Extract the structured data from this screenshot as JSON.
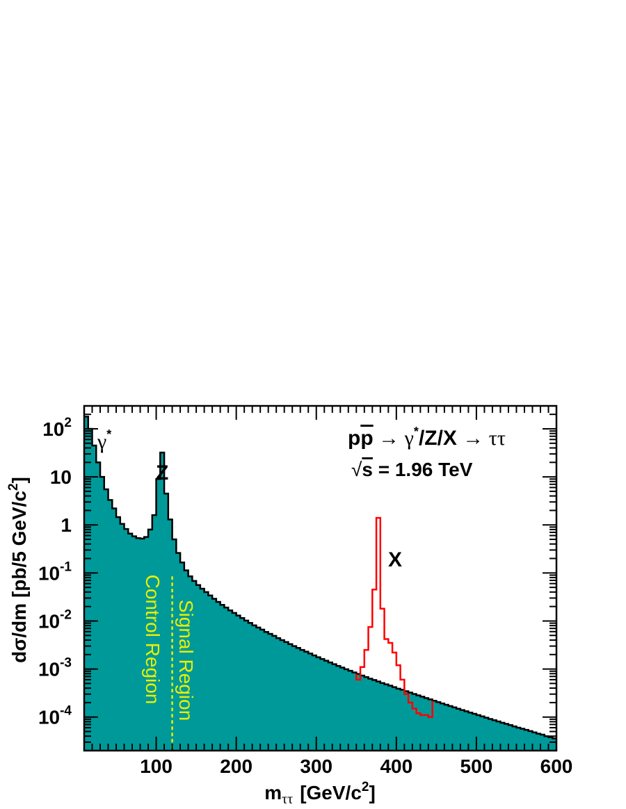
{
  "chart_data": {
    "type": "area",
    "xlabel_main": "m",
    "xlabel_sub": "ττ",
    "xlabel_unit": "[GeV/c",
    "xlabel_unit_sup": "2",
    "xlabel_unit_end": "]",
    "ylabel_main": "dσ/dm  [pb/5 GeV/c",
    "ylabel_sup": "2",
    "ylabel_end": "]",
    "x_range": [
      10,
      600
    ],
    "y_range": [
      2e-05,
      300
    ],
    "y_scale": "log",
    "x_tick_labels": [
      "100",
      "200",
      "300",
      "400",
      "500",
      "600"
    ],
    "y_tick_labels": [
      {
        "base": "10",
        "exp": "2"
      },
      {
        "base": "10",
        "exp": ""
      },
      {
        "base": "1",
        "exp": ""
      },
      {
        "base": "10",
        "exp": "-1"
      },
      {
        "base": "10",
        "exp": "-2"
      },
      {
        "base": "10",
        "exp": "-3"
      },
      {
        "base": "10",
        "exp": "-4"
      }
    ],
    "process_label": {
      "p": "p",
      "pbar": "p",
      "arrow1": " → ",
      "gamma": "γ",
      "star": "*",
      "mid": "/Z/X ",
      "arrow2": "→ ",
      "final": "ττ"
    },
    "energy_label": {
      "sqrt": "√",
      "s": "s",
      "rest": " = 1.96 TeV"
    },
    "peak_labels": {
      "gamma": {
        "text": "γ",
        "sup": "*"
      },
      "z": "Z",
      "x": "X"
    },
    "region_labels": {
      "control": "Control  Region",
      "signal": "Signal  Region"
    },
    "region_boundary_x": 120,
    "bin_width": 5,
    "colors": {
      "fill": "#009999",
      "outline": "#000000",
      "signal": "#ff0000",
      "region": "#e8f000"
    },
    "series": [
      {
        "x_start": 10,
        "values": [
          180,
          100,
          45,
          20,
          10,
          5.5,
          3.3,
          2.2,
          1.45,
          1.05,
          0.82,
          0.66,
          0.58,
          0.53,
          0.52,
          0.56,
          0.8,
          1.6,
          9,
          32,
          4.5,
          1.3,
          0.5,
          0.26,
          0.165,
          0.113,
          0.085,
          0.068,
          0.056,
          0.047,
          0.04,
          0.034,
          0.029,
          0.025,
          0.0217,
          0.019,
          0.0166,
          0.0147,
          0.013,
          0.0115,
          0.0102,
          0.0091,
          0.0081,
          0.0073,
          0.0066,
          0.0059,
          0.0054,
          0.0049,
          0.0044,
          0.004,
          0.00365,
          0.0033,
          0.003,
          0.00275,
          0.0025,
          0.0023,
          0.0021,
          0.00192,
          0.00176,
          0.00162,
          0.00149,
          0.00137,
          0.00126,
          0.00116,
          0.00107,
          0.00099,
          0.00092,
          0.00085,
          0.00079,
          0.00073,
          0.00068,
          0.00063,
          0.00059,
          0.00055,
          0.00051,
          0.00048,
          0.00045,
          0.00042,
          0.00039,
          0.00037,
          0.000345,
          0.000323,
          0.000302,
          0.000283,
          0.000265,
          0.000248,
          0.000233,
          0.000218,
          0.000205,
          0.000192,
          0.00018,
          0.000169,
          0.000159,
          0.000149,
          0.00014,
          0.000132,
          0.000124,
          0.000117,
          0.00011,
          0.000103,
          9.7e-05,
          9.1e-05,
          8.6e-05,
          8.1e-05,
          7.6e-05,
          7.2e-05,
          6.8e-05,
          6.4e-05,
          6e-05,
          5.7e-05,
          5.4e-05,
          5.1e-05,
          4.8e-05,
          4.5e-05,
          4.3e-05,
          4e-05,
          3.8e-05,
          3.6e-05
        ]
      },
      {
        "x_start": 350,
        "values": [
          0.0006,
          0.0011,
          0.0025,
          0.0075,
          0.045,
          1.4,
          0.018,
          0.0042,
          0.0035,
          0.0022,
          0.0012,
          0.0006,
          0.0003,
          0.0002,
          0.00015,
          0.00012,
          0.00011,
          0.00011,
          0.0001
        ]
      }
    ]
  }
}
